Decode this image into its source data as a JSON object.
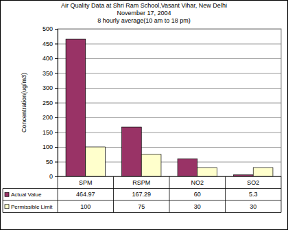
{
  "chart_data": {
    "type": "bar",
    "title": [
      "Air Quality Data at Shri Ram School,Vasant Vihar, New Delhi",
      "November 17, 2004",
      "8 hourly average(10 am to 18 pm)"
    ],
    "y_label": "Concentration(ug/m3)",
    "categories": [
      "SPM",
      "RSPM",
      "NO2",
      "SO2"
    ],
    "series": [
      {
        "name": "Actual Value",
        "color": "#993366",
        "values": [
          464.97,
          167.29,
          60,
          5.3
        ]
      },
      {
        "name": "Permissible Limit",
        "color": "#ffffcc",
        "values": [
          100,
          75,
          30,
          30
        ]
      }
    ],
    "ylim": [
      0,
      500
    ],
    "yticks": [
      0,
      50,
      100,
      150,
      200,
      250,
      300,
      350,
      400,
      450,
      500
    ],
    "grid": true,
    "legend": "bottom"
  }
}
